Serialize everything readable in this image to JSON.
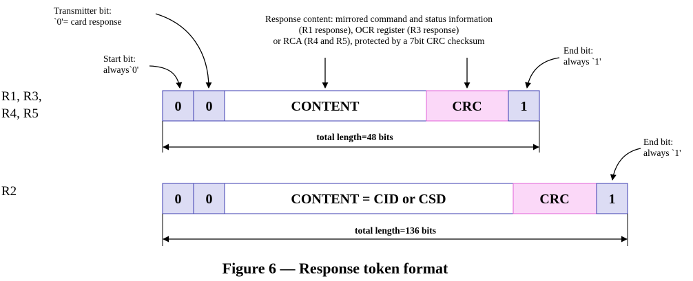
{
  "annotations": {
    "transmitter_bit": [
      "Transmitter bit:",
      "`0'= card response"
    ],
    "start_bit": [
      "Start bit:",
      "always`0'"
    ],
    "response_content": [
      "Response content: mirrored command and status information",
      "(R1 response), OCR register (R3 response)",
      "or RCA (R4 and R5), protected by a 7bit CRC checksum"
    ],
    "end_bit_top": [
      "End bit:",
      "always `1'"
    ],
    "end_bit_bottom": [
      "End bit:",
      "always `1'"
    ]
  },
  "row_labels": {
    "r1_r3_r4_r5": [
      "R1, R3,",
      "R4, R5"
    ],
    "r2": "R2"
  },
  "row1_cells": {
    "start": "0",
    "transmitter": "0",
    "content": "CONTENT",
    "crc": "CRC",
    "end": "1"
  },
  "row1_length": "total length=48 bits",
  "row2_cells": {
    "start": "0",
    "transmitter": "0",
    "content": "CONTENT = CID or CSD",
    "crc": "CRC",
    "end": "1"
  },
  "row2_length": "total length=136 bits",
  "caption": "Figure 6 — Response token format",
  "colors": {
    "bit_fill": "#dcdcf4",
    "bit_stroke": "#3b3bb0",
    "crc_fill": "#fbd8f8",
    "crc_stroke": "#e060d8",
    "content_fill": "#ffffff"
  }
}
